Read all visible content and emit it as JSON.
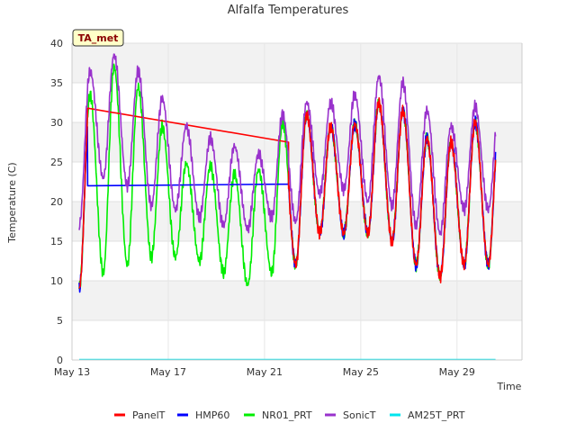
{
  "chart_data": {
    "type": "line",
    "title": "Alfalfa Temperatures",
    "xlabel": "Time",
    "ylabel": "Temperature (C)",
    "badge": "TA_met",
    "xlim": [
      13,
      31.7
    ],
    "ylim": [
      0,
      40
    ],
    "x_ticks": [
      {
        "value": 13,
        "label": "May 13"
      },
      {
        "value": 17,
        "label": "May 17"
      },
      {
        "value": 21,
        "label": "May 21"
      },
      {
        "value": 25,
        "label": "May 25"
      },
      {
        "value": 29,
        "label": "May 29"
      }
    ],
    "y_ticks": [
      0,
      5,
      10,
      15,
      20,
      25,
      30,
      35,
      40
    ],
    "grid": true,
    "legend_position": "bottom",
    "daily": {
      "start_day": 13.3,
      "panel_hmp_nr": {
        "max": [
          33.5,
          37,
          34.5,
          29.5,
          24.8,
          24.5,
          23.5,
          24,
          30,
          31,
          29.5,
          29.8,
          32.5,
          31.5,
          28,
          27.5,
          30
        ],
        "min": [
          9,
          11,
          12,
          13,
          13,
          12.5,
          11,
          9.5,
          11,
          12,
          16,
          16,
          16,
          15,
          12,
          10.5,
          12
        ]
      },
      "sonic": {
        "max": [
          36.5,
          38.5,
          36.5,
          33,
          29.5,
          28,
          27,
          26,
          31,
          32.5,
          32.5,
          33.5,
          35.8,
          35,
          31.5,
          29.5,
          32
        ],
        "min": [
          17,
          23,
          22,
          19.5,
          19,
          18,
          17,
          16.5,
          18,
          17.5,
          21,
          21.5,
          20,
          19.5,
          17,
          16,
          19
        ]
      }
    },
    "series": [
      {
        "name": "PanelT",
        "color": "#ff0000",
        "gap": {
          "start": [
            13.65,
            31.8
          ],
          "end": [
            22.0,
            27.5
          ]
        }
      },
      {
        "name": "HMP60",
        "color": "#0000ff",
        "gap": {
          "start": [
            13.65,
            22.0
          ],
          "end": [
            22.0,
            22.2
          ]
        }
      },
      {
        "name": "NR01_PRT",
        "color": "#00ee00"
      },
      {
        "name": "SonicT",
        "color": "#9932cc"
      },
      {
        "name": "AM25T_PRT",
        "color": "#00e5ee",
        "constant": 0.05
      }
    ]
  }
}
